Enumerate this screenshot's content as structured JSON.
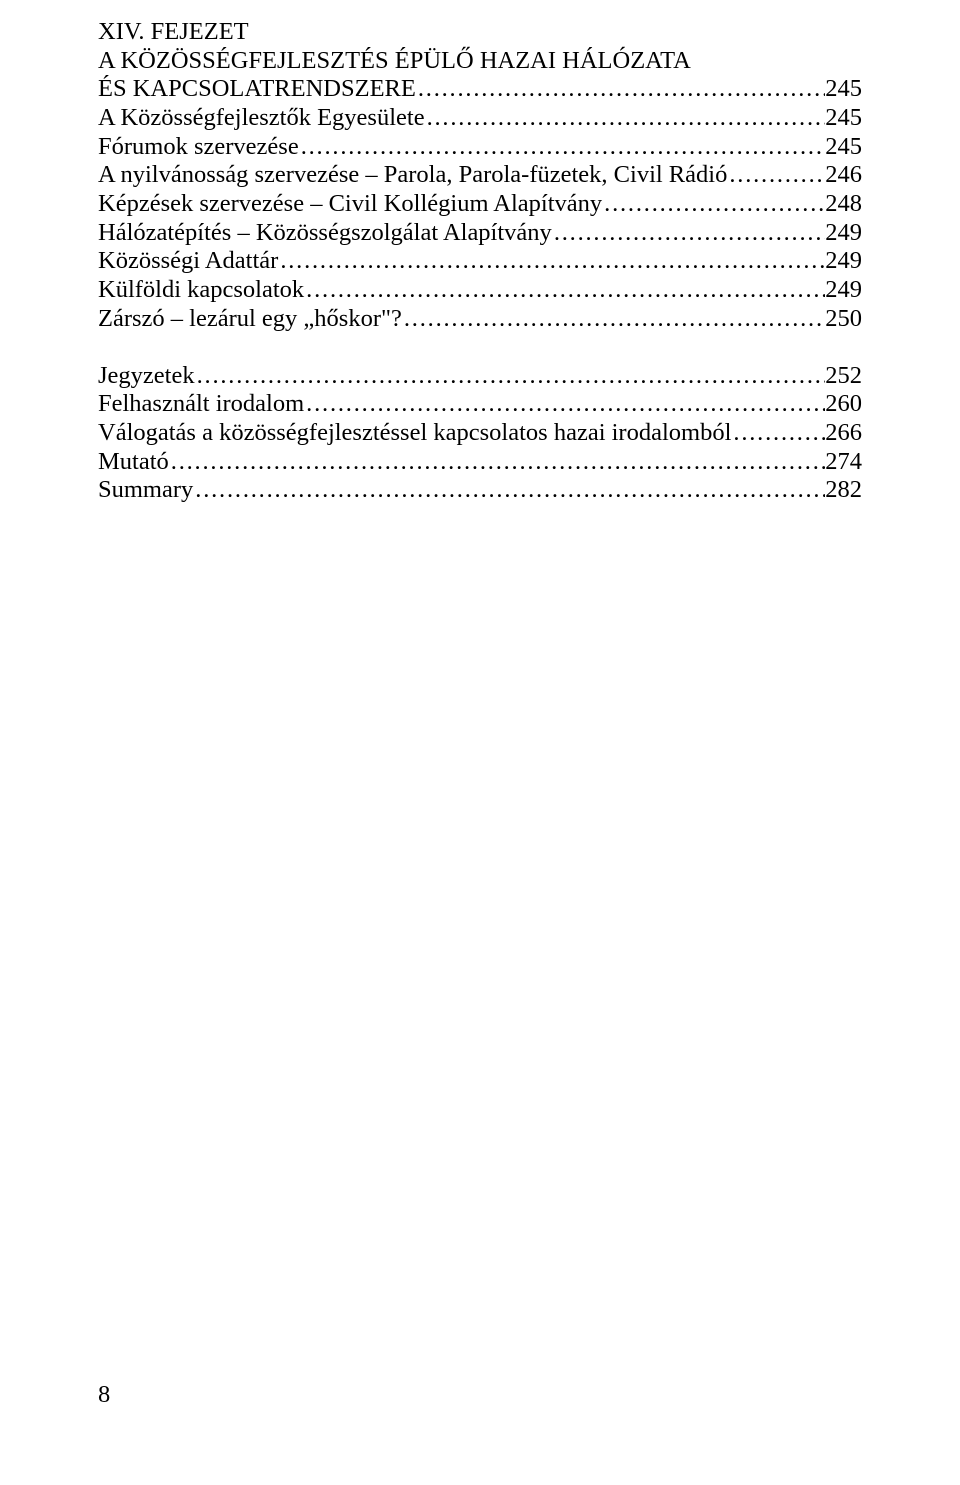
{
  "headings": {
    "line1": "XIV. FEJEZET",
    "line2": "A KÖZÖSSÉGFEJLESZTÉS ÉPÜLŐ HAZAI HÁLÓZATA",
    "line3_label": "ÉS KAPCSOLATRENDSZERE",
    "line3_page": "245"
  },
  "entries": [
    {
      "label": "A Közösségfejlesztők Egyesülete",
      "page": "245"
    },
    {
      "label": "Fórumok szervezése",
      "page": "245"
    },
    {
      "label": "A nyilvánosság szervezése – Parola, Parola-füzetek, Civil Rádió",
      "page": "246"
    },
    {
      "label": "Képzések szervezése – Civil Kollégium Alapítvány",
      "page": "248"
    },
    {
      "label": "Hálózatépítés – Közösségszolgálat Alapítvány",
      "page": "249"
    },
    {
      "label": "Közösségi Adattár",
      "page": "249"
    },
    {
      "label": "Külföldi kapcsolatok",
      "page": "249"
    },
    {
      "label": "Zárszó – lezárul egy „hőskor\"?",
      "page": "250"
    }
  ],
  "after_gap": [
    {
      "label": "Jegyzetek",
      "page": "252"
    },
    {
      "label": "Felhasznált irodalom",
      "page": "260"
    },
    {
      "label": "Válogatás a közösségfejlesztéssel kapcsolatos hazai irodalomból",
      "page": "266"
    },
    {
      "label": "Mutató",
      "page": "274"
    },
    {
      "label": "Summary",
      "page": "282"
    }
  ],
  "page_number": "8"
}
